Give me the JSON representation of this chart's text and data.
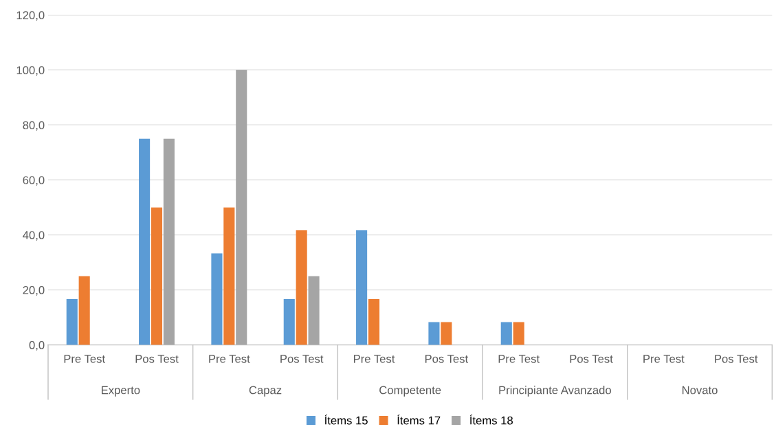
{
  "chart_data": {
    "type": "bar",
    "categories": [
      "Pre Test",
      "Pos Test",
      "Pre Test",
      "Pos Test",
      "Pre Test",
      "Pos Test",
      "Pre Test",
      "Pos Test",
      "Pre Test",
      "Pos Test"
    ],
    "series": [
      {
        "name": "Ítems 15",
        "color": "#5b9bd5",
        "values": [
          16.7,
          75,
          33.3,
          16.7,
          41.7,
          8.3,
          8.3,
          0,
          0,
          0
        ]
      },
      {
        "name": "Ítems 17",
        "color": "#ed7d31",
        "values": [
          25,
          50,
          50,
          41.7,
          16.7,
          8.3,
          8.3,
          0,
          0,
          0
        ]
      },
      {
        "name": "Ítems 18",
        "color": "#a5a5a5",
        "values": [
          0,
          75,
          100,
          25,
          0,
          0,
          0,
          0,
          0,
          0
        ]
      }
    ],
    "annotations": [
      "Experto",
      "Capaz",
      "Competente",
      "Principiante Avanzado",
      "Novato"
    ],
    "ylim": [
      0,
      120
    ],
    "yticks": [
      {
        "value": 0,
        "label": "0,0"
      },
      {
        "value": 20,
        "label": "20,0"
      },
      {
        "value": 40,
        "label": "40,0"
      },
      {
        "value": 60,
        "label": "60,0"
      },
      {
        "value": 80,
        "label": "80,0"
      },
      {
        "value": 100,
        "label": "100,0"
      },
      {
        "value": 120,
        "label": "120,0"
      }
    ],
    "grid": "y",
    "legend": "bottom"
  }
}
